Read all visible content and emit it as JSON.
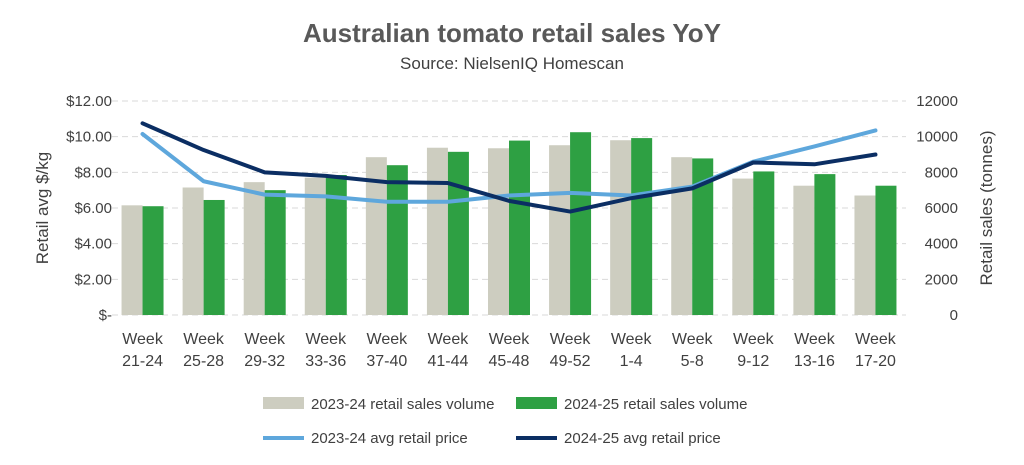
{
  "chart_data": {
    "type": "bar",
    "title": "Australian tomato retail sales YoY",
    "subtitle": "Source: NielsenIQ Homescan",
    "categories": [
      [
        "Week",
        "21-24"
      ],
      [
        "Week",
        "25-28"
      ],
      [
        "Week",
        "29-32"
      ],
      [
        "Week",
        "33-36"
      ],
      [
        "Week",
        "37-40"
      ],
      [
        "Week",
        "41-44"
      ],
      [
        "Week",
        "45-48"
      ],
      [
        "Week",
        "49-52"
      ],
      [
        "Week",
        "1-4"
      ],
      [
        "Week",
        "5-8"
      ],
      [
        "Week",
        "9-12"
      ],
      [
        "Week",
        "13-16"
      ],
      [
        "Week",
        "17-20"
      ]
    ],
    "ylabel_left": "Retail avg $/kg",
    "ylabel_right": "Retail sales (tonnes)",
    "ylim_left": [
      0,
      12
    ],
    "ylim_right": [
      0,
      12000
    ],
    "yticks_left": [
      "$-",
      "$2.00",
      "$4.00",
      "$6.00",
      "$8.00",
      "$10.00",
      "$12.00"
    ],
    "yticks_right": [
      "0",
      "2000",
      "4000",
      "6000",
      "8000",
      "10000",
      "12000"
    ],
    "grid": true,
    "legend_position": "bottom",
    "series": [
      {
        "name": "2023-24 retail sales volume",
        "type": "bar",
        "axis": "right",
        "color": "#cdcdc0",
        "values": [
          6150,
          7150,
          7450,
          7700,
          8850,
          9380,
          9350,
          9520,
          9800,
          8850,
          7650,
          7250,
          6700
        ]
      },
      {
        "name": "2024-25 retail sales volume",
        "type": "bar",
        "axis": "right",
        "color": "#2ea043",
        "values": [
          6100,
          6450,
          7000,
          7850,
          8400,
          9150,
          9780,
          10250,
          9920,
          8780,
          8050,
          7900,
          7250
        ]
      },
      {
        "name": "2023-24 avg retail price",
        "type": "line",
        "axis": "left",
        "color": "#5ea7dc",
        "values": [
          10.15,
          7.5,
          6.75,
          6.65,
          6.35,
          6.35,
          6.7,
          6.85,
          6.7,
          7.2,
          8.6,
          9.45,
          10.35
        ]
      },
      {
        "name": "2024-25 avg retail price",
        "type": "line",
        "axis": "left",
        "color": "#0b2e63",
        "values": [
          10.75,
          9.25,
          8.0,
          7.8,
          7.45,
          7.4,
          6.4,
          5.8,
          6.55,
          7.1,
          8.55,
          8.45,
          9.0
        ]
      }
    ]
  }
}
